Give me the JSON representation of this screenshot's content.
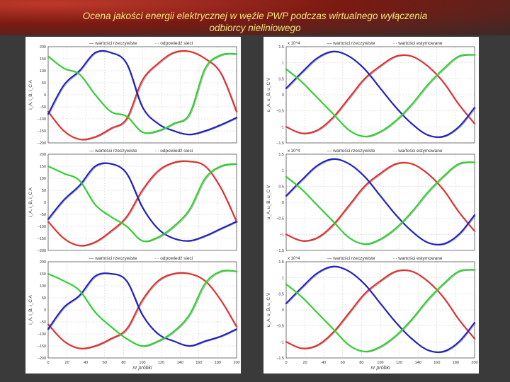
{
  "slide": {
    "title_line1": "Ocena jakości energii elektrycznej w węźle PWP podczas wirtualnego wyłączenia",
    "title_line2": "odbiorcy nieliniowego"
  },
  "colors": {
    "phase_a": "#e03030",
    "phase_b": "#2020c0",
    "phase_c": "#30d030",
    "reference": "#808080"
  },
  "chart_data": [
    {
      "id": "left-top",
      "type": "line",
      "legend": [
        "wartości rzeczywiste",
        "odpowiedź sieci"
      ],
      "ylabel": "i_A, i_B, i_C  A",
      "ylim": [
        -200,
        200
      ],
      "yticks": [
        -200,
        -150,
        -100,
        -50,
        0,
        50,
        100,
        150,
        200
      ],
      "xlim": [
        0,
        200
      ],
      "xticks": [],
      "xlabel": "",
      "series": [
        {
          "color": "#e03030",
          "values": [
            -70,
            -150,
            -185,
            -175,
            -140,
            -100,
            60,
            130,
            175,
            180,
            150,
            90,
            -70
          ]
        },
        {
          "color": "#2020c0",
          "values": [
            -80,
            40,
            100,
            175,
            175,
            130,
            -50,
            -120,
            -150,
            -165,
            -150,
            -125,
            -95
          ]
        },
        {
          "color": "#30d030",
          "values": [
            160,
            110,
            85,
            0,
            -70,
            -90,
            -155,
            -150,
            -120,
            -80,
            110,
            165,
            170
          ]
        }
      ]
    },
    {
      "id": "left-mid",
      "type": "line",
      "legend": [
        "wartości rzeczywiste",
        "odpowiedź sieci"
      ],
      "ylabel": "i_A, i_B, i_C  A",
      "ylim": [
        -200,
        200
      ],
      "yticks": [
        -200,
        -150,
        -100,
        -50,
        0,
        50,
        100,
        150,
        200
      ],
      "xlim": [
        0,
        200
      ],
      "xticks": [],
      "xlabel": "",
      "series": [
        {
          "color": "#e03030",
          "values": [
            -80,
            -150,
            -180,
            -165,
            -120,
            -60,
            50,
            130,
            165,
            170,
            150,
            60,
            -80
          ]
        },
        {
          "color": "#2020c0",
          "values": [
            -70,
            10,
            70,
            150,
            160,
            120,
            -20,
            -110,
            -150,
            -160,
            -140,
            -110,
            -80
          ]
        },
        {
          "color": "#30d030",
          "values": [
            150,
            120,
            90,
            -10,
            -60,
            -100,
            -160,
            -145,
            -100,
            -30,
            100,
            150,
            160
          ]
        }
      ]
    },
    {
      "id": "left-bot",
      "type": "line",
      "legend": [
        "wartości rzeczywiste",
        "odpowiedź sieci"
      ],
      "ylabel": "i_A, i_B, i_C  A",
      "ylim": [
        -200,
        200
      ],
      "yticks": [
        -200,
        -150,
        -100,
        -50,
        0,
        50,
        100,
        150,
        200
      ],
      "xlim": [
        0,
        200
      ],
      "xticks": [
        0,
        20,
        40,
        60,
        80,
        100,
        120,
        140,
        160,
        180,
        200
      ],
      "xlabel": "nr próbki",
      "series": [
        {
          "color": "#e03030",
          "values": [
            -60,
            -130,
            -160,
            -150,
            -120,
            -80,
            40,
            120,
            150,
            150,
            120,
            40,
            -70
          ]
        },
        {
          "color": "#2020c0",
          "values": [
            -80,
            10,
            60,
            140,
            150,
            120,
            -20,
            -100,
            -130,
            -150,
            -130,
            -110,
            -80
          ]
        },
        {
          "color": "#30d030",
          "values": [
            150,
            120,
            80,
            -10,
            -70,
            -120,
            -150,
            -130,
            -90,
            -20,
            110,
            160,
            160
          ]
        }
      ]
    },
    {
      "id": "right-top",
      "type": "line",
      "legend": [
        "wartości rzeczywiste",
        "wartości estymowane"
      ],
      "ylabel": "u_A, u_B, u_C  V",
      "multiplier": "x 10^4",
      "ylim": [
        -1.5,
        1.5
      ],
      "yticks": [
        -1.5,
        -1,
        -0.5,
        0,
        0.5,
        1,
        1.5
      ],
      "xlim": [
        0,
        200
      ],
      "xticks": [],
      "xlabel": "",
      "series": [
        {
          "color": "#e03030",
          "values": [
            -1.0,
            -1.2,
            -1.1,
            -0.7,
            -0.1,
            0.5,
            0.9,
            1.2,
            1.2,
            0.9,
            0.4,
            -0.3,
            -0.9
          ]
        },
        {
          "color": "#2020c0",
          "values": [
            0.2,
            0.7,
            1.15,
            1.35,
            1.2,
            0.8,
            0.2,
            -0.4,
            -0.9,
            -1.25,
            -1.3,
            -1.0,
            -0.4
          ]
        },
        {
          "color": "#30d030",
          "values": [
            0.8,
            0.4,
            -0.1,
            -0.6,
            -1.1,
            -1.3,
            -1.15,
            -0.8,
            -0.3,
            0.3,
            0.8,
            1.2,
            1.25
          ]
        }
      ]
    },
    {
      "id": "right-mid",
      "type": "line",
      "legend": [
        "wartości rzeczywiste",
        "wartości estymowane"
      ],
      "ylabel": "u_A, u_B, u_C  V",
      "multiplier": "x 10^4",
      "ylim": [
        -1.5,
        1.5
      ],
      "yticks": [
        -1.5,
        -1,
        -0.5,
        0,
        0.5,
        1,
        1.5
      ],
      "xlim": [
        0,
        200
      ],
      "xticks": [],
      "xlabel": "",
      "series": [
        {
          "color": "#e03030",
          "values": [
            -1.0,
            -1.2,
            -1.1,
            -0.7,
            -0.1,
            0.5,
            0.9,
            1.2,
            1.2,
            0.9,
            0.4,
            -0.3,
            -0.9
          ]
        },
        {
          "color": "#2020c0",
          "values": [
            0.2,
            0.7,
            1.15,
            1.35,
            1.2,
            0.8,
            0.2,
            -0.4,
            -0.9,
            -1.25,
            -1.3,
            -1.0,
            -0.4
          ]
        },
        {
          "color": "#30d030",
          "values": [
            0.8,
            0.4,
            -0.1,
            -0.6,
            -1.1,
            -1.3,
            -1.15,
            -0.8,
            -0.3,
            0.3,
            0.8,
            1.2,
            1.25
          ]
        }
      ]
    },
    {
      "id": "right-bot",
      "type": "line",
      "legend": [
        "wartości rzeczywiste",
        "wartości estymowane"
      ],
      "ylabel": "u_A, u_B, u_C  V",
      "multiplier": "x 10^4",
      "ylim": [
        -1.5,
        1.5
      ],
      "yticks": [
        -1.5,
        -1,
        -0.5,
        0,
        0.5,
        1,
        1.5
      ],
      "xlim": [
        0,
        200
      ],
      "xticks": [
        0,
        20,
        40,
        60,
        80,
        100,
        120,
        140,
        160,
        180,
        200
      ],
      "xlabel": "nr próbki",
      "series": [
        {
          "color": "#e03030",
          "values": [
            -1.0,
            -1.2,
            -1.1,
            -0.7,
            -0.1,
            0.5,
            0.9,
            1.2,
            1.2,
            0.9,
            0.4,
            -0.3,
            -0.9
          ]
        },
        {
          "color": "#2020c0",
          "values": [
            0.2,
            0.7,
            1.15,
            1.35,
            1.2,
            0.8,
            0.2,
            -0.4,
            -0.9,
            -1.25,
            -1.3,
            -1.0,
            -0.4
          ]
        },
        {
          "color": "#30d030",
          "values": [
            0.8,
            0.4,
            -0.1,
            -0.6,
            -1.1,
            -1.3,
            -1.15,
            -0.8,
            -0.3,
            0.3,
            0.8,
            1.2,
            1.25
          ]
        }
      ]
    }
  ]
}
